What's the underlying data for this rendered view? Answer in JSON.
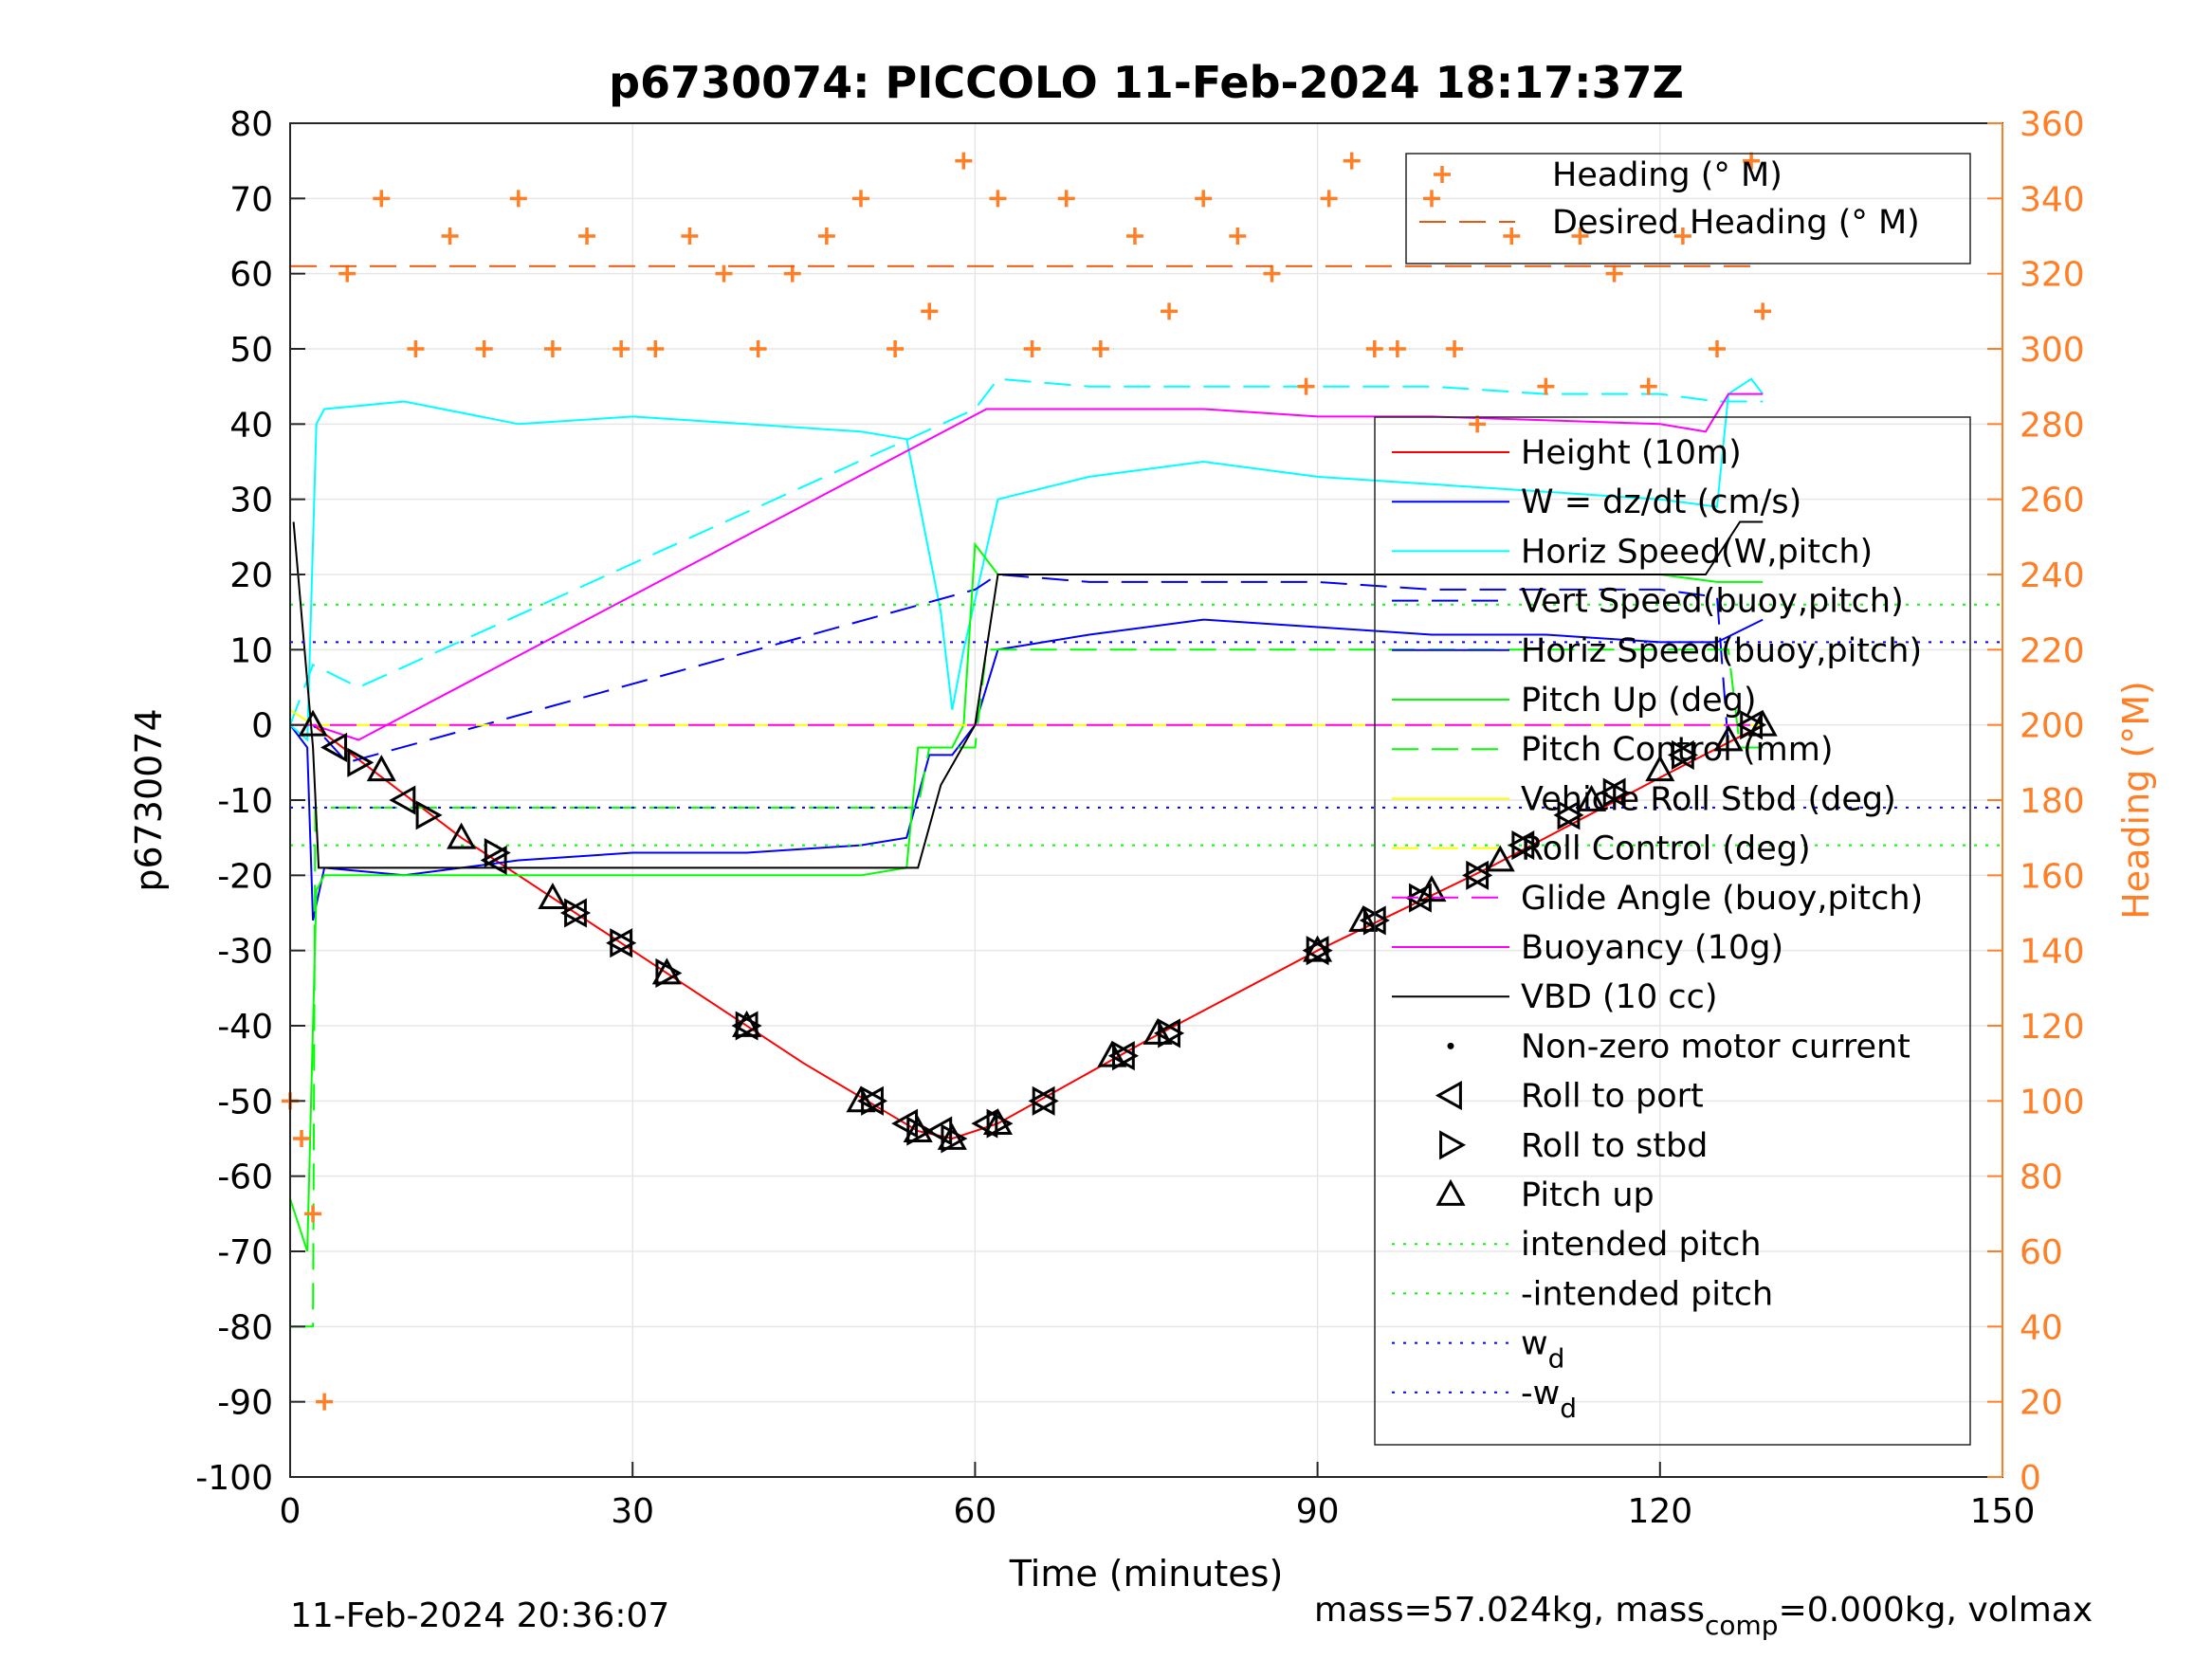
{
  "chart_data": {
    "type": "line",
    "title": "p6730074: PICCOLO 11-Feb-2024 18:17:37Z",
    "xlabel": "Time (minutes)",
    "ylabel_left": "p6730074",
    "ylabel_right": "Heading (°M)",
    "xlim": [
      0,
      150
    ],
    "ylim_left": [
      -100,
      80
    ],
    "ylim_right": [
      0,
      360
    ],
    "x_ticks": [
      "0",
      "30",
      "60",
      "90",
      "120",
      "150"
    ],
    "y_ticks_left": [
      "80",
      "70",
      "60",
      "50",
      "40",
      "30",
      "20",
      "10",
      "0",
      "-10",
      "-20",
      "-30",
      "-40",
      "-50",
      "-60",
      "-70",
      "-80",
      "-90",
      "-100"
    ],
    "y_ticks_right": [
      "360",
      "340",
      "320",
      "300",
      "280",
      "260",
      "240",
      "220",
      "200",
      "180",
      "160",
      "140",
      "120",
      "100",
      "80",
      "60",
      "40",
      "20",
      "0"
    ],
    "grid": true,
    "legend_top": {
      "placement": "top-right",
      "entries": [
        "Heading (° M)",
        "Desired Heading (° M)"
      ]
    },
    "legend_main": {
      "placement": "right",
      "entries": [
        "Height (10m)",
        "W = dz/dt (cm/s)",
        "Horiz Speed(W,pitch)",
        "Vert Speed(buoy,pitch)",
        "Horiz Speed(buoy,pitch)",
        "Pitch Up (deg)",
        "Pitch Control (mm)",
        "Vehicle Roll Stbd (deg)",
        "Roll Control (deg)",
        "Glide Angle (buoy,pitch)",
        "Buoyancy (10g)",
        "VBD (10 cc)",
        "Non-zero motor current",
        "Roll to port",
        "Roll to stbd",
        "Pitch up",
        "intended pitch",
        "-intended pitch",
        "w",
        "-w"
      ],
      "subscript": "d"
    },
    "colors": {
      "height": "#ff0000",
      "w": "#0000ff",
      "horiz_speed": "#00ffff",
      "vert_speed_buoy": "#0000ff",
      "pitch": "#00ff00",
      "roll": "#ffff00",
      "glide": "#ff00ff",
      "vbd": "#000000",
      "heading": "#ff7f27",
      "desired_heading": "#e8590c",
      "intended_pitch": "#00ff00",
      "wd": "#0000ff"
    },
    "series": [
      {
        "name": "Height (10m)",
        "x": [
          2,
          15,
          30,
          45,
          55,
          58,
          62,
          75,
          90,
          105,
          120,
          129
        ],
        "y": [
          0,
          -15,
          -30,
          -45,
          -54,
          -55,
          -53,
          -42,
          -30,
          -19,
          -7,
          0
        ]
      },
      {
        "name": "W = dz/dt (cm/s)",
        "x": [
          0,
          1.5,
          2,
          3,
          10,
          20,
          30,
          40,
          50,
          54,
          56,
          58,
          60,
          62,
          70,
          80,
          90,
          100,
          110,
          120,
          125,
          129
        ],
        "y": [
          0,
          -3,
          -26,
          -19,
          -20,
          -18,
          -17,
          -17,
          -16,
          -15,
          -4,
          -4,
          0,
          10,
          12,
          14,
          13,
          12,
          12,
          11,
          11,
          14
        ]
      },
      {
        "name": "Horiz Speed(W,pitch)",
        "x": [
          0,
          1.5,
          2.3,
          3,
          10,
          20,
          30,
          40,
          50,
          54,
          57,
          58,
          59,
          62,
          70,
          80,
          90,
          100,
          110,
          120,
          125,
          126,
          128,
          129
        ],
        "y": [
          0,
          -2,
          40,
          42,
          43,
          40,
          41,
          40,
          39,
          38,
          15,
          2,
          10,
          30,
          33,
          35,
          33,
          32,
          31,
          30,
          29,
          44,
          46,
          44
        ]
      },
      {
        "name": "Vert Speed(buoy,pitch)",
        "x": [
          0,
          2,
          5,
          60,
          62,
          70,
          80,
          90,
          100,
          110,
          120,
          125,
          126,
          129
        ],
        "y": [
          0,
          0,
          -5,
          18,
          20,
          19,
          19,
          19,
          18,
          18,
          18,
          17,
          -3,
          -3
        ]
      },
      {
        "name": "Horiz Speed(buoy,pitch)",
        "x": [
          0,
          2,
          6,
          60,
          62,
          70,
          80,
          90,
          100,
          110,
          120,
          125,
          126,
          129
        ],
        "y": [
          0,
          8,
          5,
          42,
          46,
          45,
          45,
          45,
          45,
          44,
          44,
          43,
          43,
          43
        ]
      },
      {
        "name": "Pitch Up (deg)",
        "x": [
          0,
          1.5,
          2.3,
          3,
          10,
          20,
          30,
          40,
          50,
          54,
          55,
          58,
          59,
          60,
          62,
          70,
          80,
          90,
          100,
          110,
          120,
          125,
          129
        ],
        "y": [
          -63,
          -70,
          -22,
          -20,
          -20,
          -20,
          -20,
          -20,
          -20,
          -19,
          -3,
          -3,
          0,
          24,
          20,
          20,
          20,
          20,
          20,
          20,
          20,
          19,
          19
        ]
      },
      {
        "name": "Pitch Control (mm)",
        "x": [
          0,
          2,
          2.2,
          55,
          56,
          60,
          61,
          126,
          127,
          129
        ],
        "y": [
          -80,
          -80,
          -11,
          -11,
          -3,
          -3,
          10,
          10,
          -3,
          -3
        ]
      },
      {
        "name": "Vehicle Roll Stbd (deg)",
        "x": [
          0,
          2,
          3,
          55,
          60,
          62,
          129
        ],
        "y": [
          2,
          0,
          0,
          0,
          0,
          0,
          0
        ]
      },
      {
        "name": "Roll Control (deg)",
        "x": [
          0,
          2,
          3,
          55,
          60,
          62,
          129
        ],
        "y": [
          0,
          0,
          0,
          0,
          0,
          0,
          0
        ]
      },
      {
        "name": "Glide Angle (buoy,pitch)",
        "x": [
          0,
          129
        ],
        "y": [
          0,
          0
        ]
      },
      {
        "name": "Buoyancy (10g)",
        "x": [
          2,
          6,
          61,
          80,
          90,
          100,
          120,
          124,
          126,
          129
        ],
        "y": [
          0,
          -2,
          42,
          42,
          41,
          41,
          40,
          39,
          44,
          44
        ]
      },
      {
        "name": "VBD (10 cc)",
        "x": [
          0.3,
          2,
          2.5,
          55,
          57,
          60,
          61,
          62,
          124,
          127,
          129
        ],
        "y": [
          27,
          -3,
          -19,
          -19,
          -8,
          0,
          10,
          20,
          20,
          27,
          27
        ]
      },
      {
        "name": "Heading (° M)",
        "x": [
          0,
          1,
          2,
          3,
          5,
          8,
          11,
          14,
          17,
          20,
          23,
          26,
          29,
          32,
          35,
          38,
          41,
          44,
          47,
          50,
          53,
          56,
          59,
          62,
          65,
          68,
          71,
          74,
          77,
          80,
          83,
          86,
          89,
          91,
          93,
          95,
          97,
          100,
          102,
          104,
          107,
          110,
          113,
          116,
          119,
          122,
          125,
          128,
          129
        ],
        "y": [
          100,
          90,
          70,
          20,
          320,
          340,
          300,
          330,
          300,
          340,
          300,
          330,
          300,
          300,
          330,
          320,
          300,
          320,
          330,
          340,
          300,
          310,
          350,
          340,
          300,
          340,
          300,
          330,
          310,
          340,
          330,
          320,
          290,
          340,
          350,
          300,
          300,
          340,
          300,
          280,
          330,
          290,
          330,
          320,
          290,
          330,
          300,
          350,
          310
        ]
      },
      {
        "name": "Desired Heading (° M)",
        "x": [
          0,
          129
        ],
        "y": [
          322,
          322
        ]
      },
      {
        "name": "intended pitch",
        "x": [
          0,
          150
        ],
        "y": [
          16,
          16
        ]
      },
      {
        "name": "-intended pitch",
        "x": [
          0,
          150
        ],
        "y": [
          -16,
          -16
        ]
      },
      {
        "name": "w",
        "x": [
          0,
          150
        ],
        "y": [
          11,
          11
        ]
      },
      {
        "name": "-w",
        "x": [
          0,
          150
        ],
        "y": [
          -11,
          -11
        ]
      }
    ],
    "markers": {
      "Pitch up": [
        [
          2,
          0
        ],
        [
          8,
          -6
        ],
        [
          15,
          -15
        ],
        [
          23,
          -23
        ],
        [
          33,
          -33
        ],
        [
          40,
          -40
        ],
        [
          50,
          -50
        ],
        [
          55,
          -54
        ],
        [
          58,
          -55
        ],
        [
          62,
          -53
        ],
        [
          72,
          -44
        ],
        [
          76,
          -41
        ],
        [
          90,
          -30
        ],
        [
          94,
          -26
        ],
        [
          100,
          -22
        ],
        [
          106,
          -18
        ],
        [
          114,
          -10
        ],
        [
          120,
          -6
        ],
        [
          126,
          -2
        ],
        [
          129,
          0
        ]
      ],
      "Roll to port": [
        [
          4,
          -3
        ],
        [
          10,
          -10
        ],
        [
          18,
          -18
        ],
        [
          25,
          -25
        ],
        [
          29,
          -29
        ],
        [
          40,
          -40
        ],
        [
          51,
          -50
        ],
        [
          54,
          -53
        ],
        [
          57,
          -54
        ],
        [
          61,
          -53
        ],
        [
          66,
          -50
        ],
        [
          73,
          -44
        ],
        [
          77,
          -41
        ],
        [
          90,
          -30
        ],
        [
          95,
          -26
        ],
        [
          99,
          -23
        ],
        [
          104,
          -20
        ],
        [
          108,
          -16
        ],
        [
          112,
          -12
        ],
        [
          116,
          -9
        ],
        [
          122,
          -4
        ],
        [
          128,
          0
        ]
      ],
      "Roll to stbd": [
        [
          6,
          -5
        ],
        [
          12,
          -12
        ],
        [
          18,
          -17
        ],
        [
          25,
          -25
        ],
        [
          29,
          -29
        ],
        [
          33,
          -33
        ],
        [
          40,
          -40
        ],
        [
          51,
          -50
        ],
        [
          55,
          -54
        ],
        [
          58,
          -55
        ],
        [
          62,
          -53
        ],
        [
          66,
          -50
        ],
        [
          73,
          -44
        ],
        [
          77,
          -41
        ],
        [
          90,
          -30
        ],
        [
          95,
          -26
        ],
        [
          99,
          -23
        ],
        [
          104,
          -20
        ],
        [
          108,
          -16
        ],
        [
          112,
          -12
        ],
        [
          116,
          -9
        ],
        [
          122,
          -4
        ],
        [
          128,
          0
        ]
      ]
    }
  },
  "footer_left": "11-Feb-2024 20:36:07",
  "footer_right": {
    "prefix": "mass=57.024kg, mass",
    "sub": "comp",
    "suffix": "=0.000kg, volmax"
  }
}
